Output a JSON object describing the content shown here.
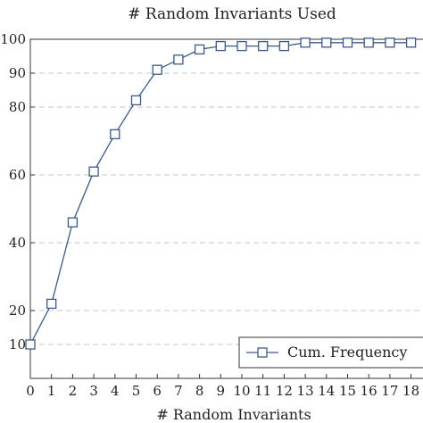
{
  "chart_data": {
    "type": "line",
    "title": "# Random Invariants Used",
    "xlabel": "# Random Invariants",
    "ylabel": "",
    "xlim": [
      0,
      18
    ],
    "ylim": [
      0,
      100
    ],
    "x_ticks": [
      0,
      1,
      2,
      3,
      4,
      5,
      6,
      7,
      8,
      9,
      10,
      11,
      12,
      13,
      14,
      15,
      16,
      17,
      18
    ],
    "y_ticks": [
      10,
      20,
      40,
      60,
      80,
      90,
      100
    ],
    "grid": "horizontal-dashed",
    "legend_position": "bottom-right",
    "series": [
      {
        "name": "Cum. Frequency",
        "marker": "square",
        "color": "#3b5a8a",
        "x": [
          0,
          1,
          2,
          3,
          4,
          5,
          6,
          7,
          8,
          9,
          10,
          11,
          12,
          13,
          14,
          15,
          16,
          17,
          18
        ],
        "values": [
          10,
          22,
          46,
          61,
          72,
          82,
          91,
          94,
          97,
          98,
          98,
          98,
          98,
          99,
          99,
          99,
          99,
          99,
          99
        ]
      }
    ]
  }
}
